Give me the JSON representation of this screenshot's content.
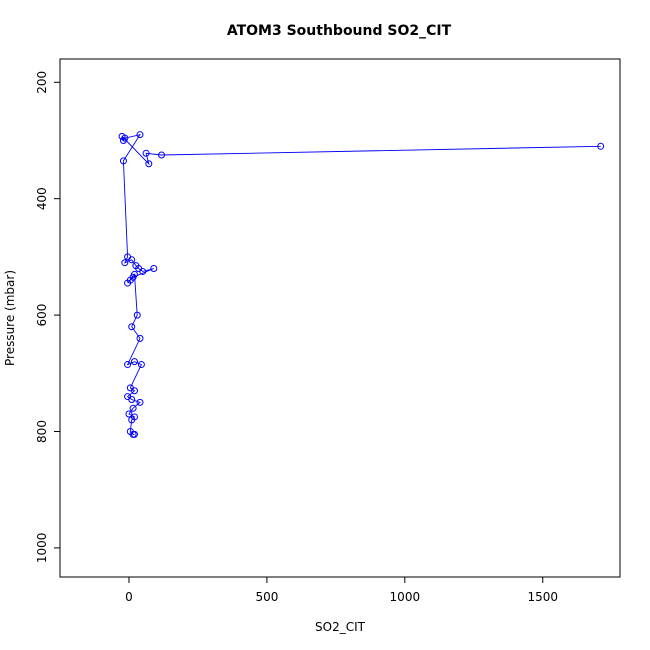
{
  "chart_data": {
    "type": "line",
    "title": "ATOM3 Southbound SO2_CIT",
    "xlabel": "SO2_CIT",
    "ylabel": "Pressure (mbar)",
    "xlim": [
      -250,
      1780
    ],
    "ylim": [
      1050,
      160
    ],
    "y_reversed": true,
    "xticks": [
      0,
      500,
      1000,
      1500
    ],
    "yticks": [
      200,
      400,
      600,
      800,
      1000
    ],
    "series_color": "#0000ff",
    "marker": "open-circle",
    "series": [
      {
        "values": [
          {
            "x": 1710,
            "y": 310
          },
          {
            "x": 118,
            "y": 325
          },
          {
            "x": 62,
            "y": 322
          },
          {
            "x": 72,
            "y": 340
          },
          {
            "x": -25,
            "y": 293
          },
          {
            "x": -20,
            "y": 300
          },
          {
            "x": -15,
            "y": 296
          },
          {
            "x": 40,
            "y": 290
          },
          {
            "x": -20,
            "y": 335
          },
          {
            "x": -5,
            "y": 500
          },
          {
            "x": -15,
            "y": 510
          },
          {
            "x": 10,
            "y": 505
          },
          {
            "x": 25,
            "y": 515
          },
          {
            "x": 35,
            "y": 520
          },
          {
            "x": 50,
            "y": 525
          },
          {
            "x": 90,
            "y": 520
          },
          {
            "x": 15,
            "y": 535
          },
          {
            "x": 5,
            "y": 540
          },
          {
            "x": -5,
            "y": 545
          },
          {
            "x": 20,
            "y": 530
          },
          {
            "x": 30,
            "y": 600
          },
          {
            "x": 10,
            "y": 620
          },
          {
            "x": 40,
            "y": 640
          },
          {
            "x": -5,
            "y": 685
          },
          {
            "x": 20,
            "y": 680
          },
          {
            "x": 45,
            "y": 685
          },
          {
            "x": 5,
            "y": 725
          },
          {
            "x": 20,
            "y": 730
          },
          {
            "x": -5,
            "y": 740
          },
          {
            "x": 10,
            "y": 745
          },
          {
            "x": 40,
            "y": 750
          },
          {
            "x": 15,
            "y": 760
          },
          {
            "x": 0,
            "y": 770
          },
          {
            "x": 20,
            "y": 775
          },
          {
            "x": 10,
            "y": 780
          },
          {
            "x": 5,
            "y": 800
          },
          {
            "x": 15,
            "y": 805
          },
          {
            "x": 20,
            "y": 805
          }
        ]
      }
    ]
  }
}
